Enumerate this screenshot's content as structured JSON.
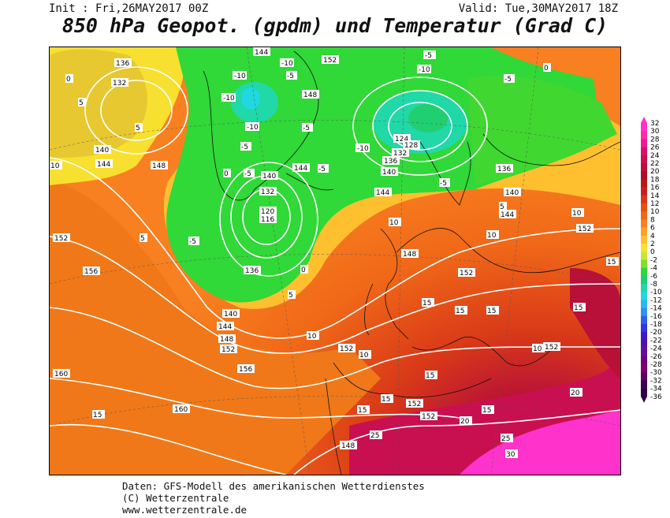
{
  "header": {
    "init": "Init : Fri,26MAY2017 00Z",
    "valid": "Valid: Tue,30MAY2017 18Z",
    "title": "850 hPa Geopot. (gpdm) und Temperatur (Grad C)"
  },
  "footer": {
    "line1": "Daten: GFS-Modell des amerikanischen Wetterdienstes",
    "line2": "(C) Wetterzentrale",
    "line3": "www.wetterzentrale.de"
  },
  "colorbar": {
    "ticks": [
      "32",
      "30",
      "28",
      "26",
      "24",
      "22",
      "20",
      "18",
      "16",
      "14",
      "12",
      "10",
      "8",
      "6",
      "4",
      "2",
      "0",
      "-2",
      "-4",
      "-6",
      "-8",
      "-10",
      "-12",
      "-14",
      "-16",
      "-18",
      "-20",
      "-22",
      "-24",
      "-26",
      "-28",
      "-30",
      "-32",
      "-34",
      "-36"
    ],
    "colors": [
      "#ff33cc",
      "#ff2aa8",
      "#ee1a90",
      "#d81070",
      "#c81050",
      "#b81038",
      "#a81028",
      "#b81818",
      "#c82020",
      "#d83818",
      "#e85010",
      "#f06818",
      "#f88020",
      "#ffa020",
      "#ffc030",
      "#f8e030",
      "#c8e830",
      "#80e028",
      "#30d838",
      "#20d070",
      "#20d8a8",
      "#20d8e0",
      "#28b8f0",
      "#3090f0",
      "#3060e8",
      "#3038e0",
      "#4018c8",
      "#5010b0",
      "#601098",
      "#700080",
      "#800070",
      "#600060",
      "#400050",
      "#300040"
    ]
  },
  "map": {
    "isohypse_labels": [
      "120",
      "124",
      "128",
      "132",
      "136",
      "140",
      "144",
      "148",
      "152",
      "156",
      "160",
      "116",
      "126",
      "144",
      "152"
    ],
    "temperature_labels": [
      "-10",
      "-5",
      "0",
      "5",
      "10",
      "15",
      "20",
      "25",
      "30"
    ]
  }
}
